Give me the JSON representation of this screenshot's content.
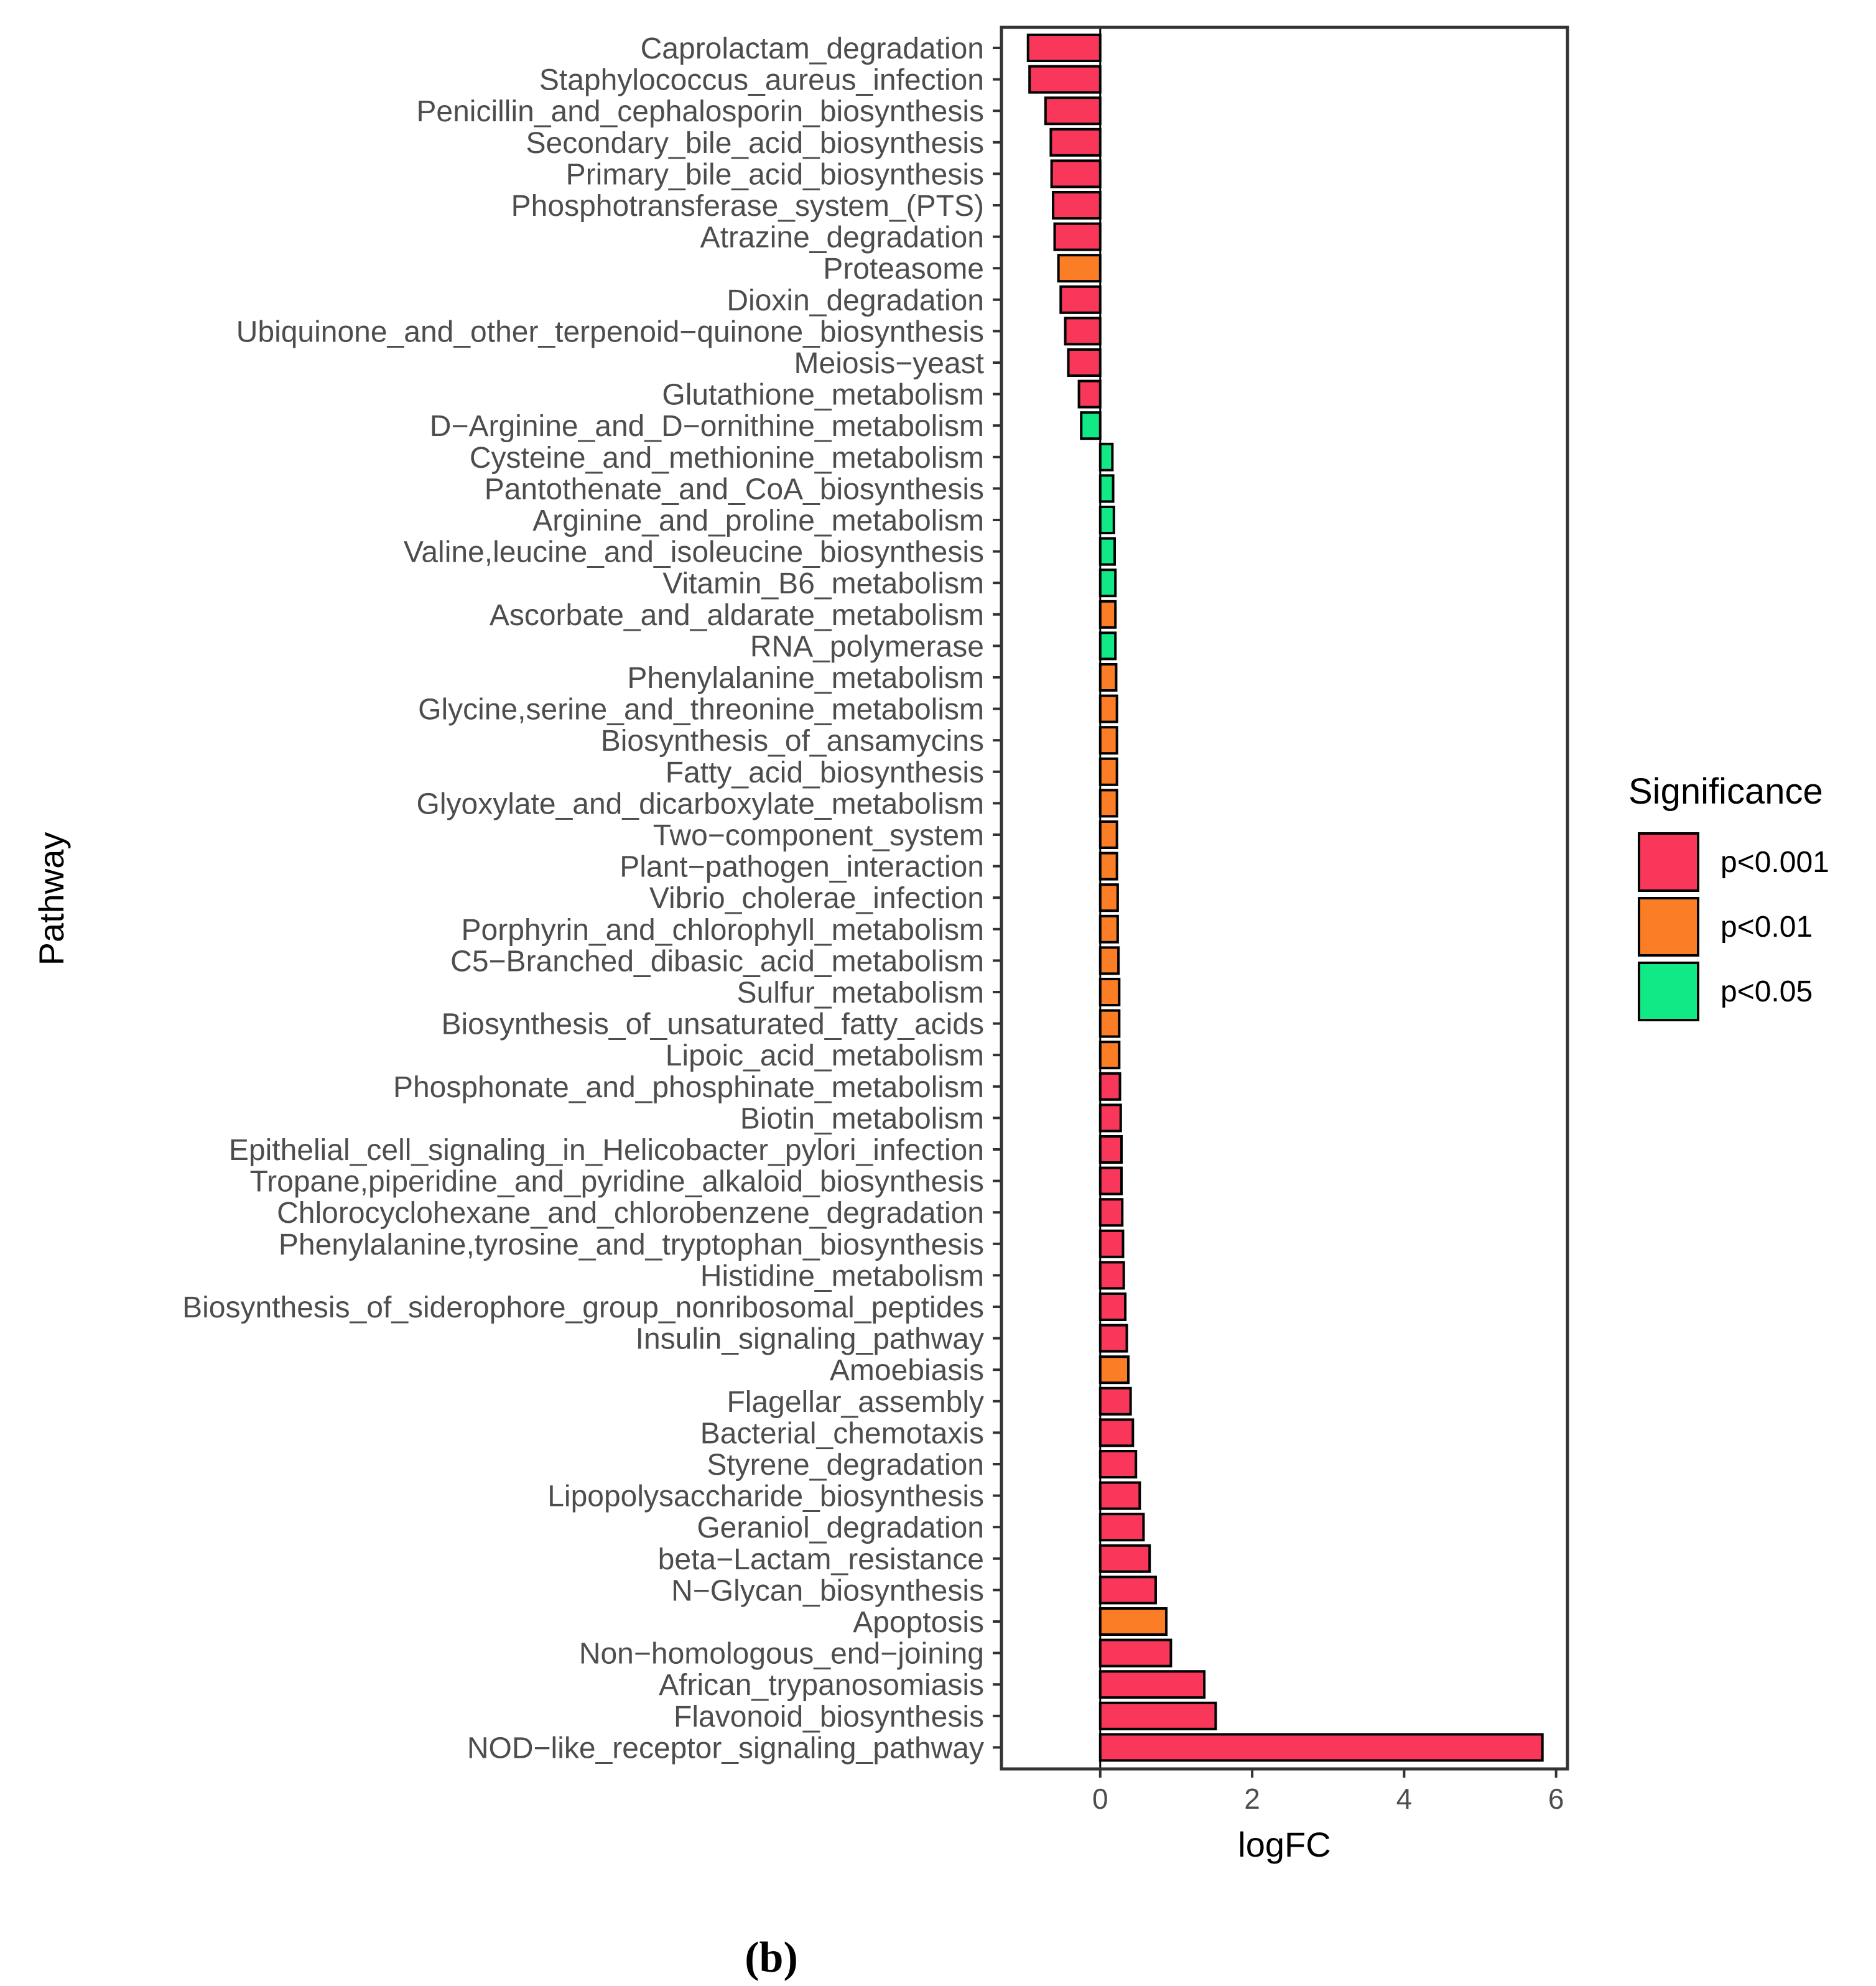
{
  "chart_data": {
    "type": "bar",
    "orientation": "horizontal",
    "xlabel": "logFC",
    "ylabel": "Pathway",
    "xlim": [
      -1.3,
      6.15
    ],
    "xticks": [
      0,
      2,
      4,
      6
    ],
    "grid": false,
    "legend": {
      "title": "Significance",
      "placement": "right",
      "entries": [
        {
          "label": "p<0.001",
          "color": "#f8375a"
        },
        {
          "label": "p<0.01",
          "color": "#fb7d25"
        },
        {
          "label": "p<0.05",
          "color": "#11e886"
        }
      ]
    },
    "categories": [
      "Caprolactam_degradation",
      "Staphylococcus_aureus_infection",
      "Penicillin_and_cephalosporin_biosynthesis",
      "Secondary_bile_acid_biosynthesis",
      "Primary_bile_acid_biosynthesis",
      "Phosphotransferase_system_(PTS)",
      "Atrazine_degradation",
      "Proteasome",
      "Dioxin_degradation",
      "Ubiquinone_and_other_terpenoid−quinone_biosynthesis",
      "Meiosis−yeast",
      "Glutathione_metabolism",
      "D−Arginine_and_D−ornithine_metabolism",
      "Cysteine_and_methionine_metabolism",
      "Pantothenate_and_CoA_biosynthesis",
      "Arginine_and_proline_metabolism",
      "Valine,leucine_and_isoleucine_biosynthesis",
      "Vitamin_B6_metabolism",
      "Ascorbate_and_aldarate_metabolism",
      "RNA_polymerase",
      "Phenylalanine_metabolism",
      "Glycine,serine_and_threonine_metabolism",
      "Biosynthesis_of_ansamycins",
      "Fatty_acid_biosynthesis",
      "Glyoxylate_and_dicarboxylate_metabolism",
      "Two−component_system",
      "Plant−pathogen_interaction",
      "Vibrio_cholerae_infection",
      "Porphyrin_and_chlorophyll_metabolism",
      "C5−Branched_dibasic_acid_metabolism",
      "Sulfur_metabolism",
      "Biosynthesis_of_unsaturated_fatty_acids",
      "Lipoic_acid_metabolism",
      "Phosphonate_and_phosphinate_metabolism",
      "Biotin_metabolism",
      "Epithelial_cell_signaling_in_Helicobacter_pylori_infection",
      "Tropane,piperidine_and_pyridine_alkaloid_biosynthesis",
      "Chlorocyclohexane_and_chlorobenzene_degradation",
      "Phenylalanine,tyrosine_and_tryptophan_biosynthesis",
      "Histidine_metabolism",
      "Biosynthesis_of_siderophore_group_nonribosomal_peptides",
      "Insulin_signaling_pathway",
      "Amoebiasis",
      "Flagellar_assembly",
      "Bacterial_chemotaxis",
      "Styrene_degradation",
      "Lipopolysaccharide_biosynthesis",
      "Geraniol_degradation",
      "beta−Lactam_resistance",
      "N−Glycan_biosynthesis",
      "Apoptosis",
      "Non−homologous_end−joining",
      "African_trypanosomiasis",
      "Flavonoid_biosynthesis",
      "NOD−like_receptor_signaling_pathway"
    ],
    "values": [
      -0.95,
      -0.93,
      -0.72,
      -0.65,
      -0.64,
      -0.62,
      -0.6,
      -0.55,
      -0.52,
      -0.46,
      -0.42,
      -0.28,
      -0.25,
      0.16,
      0.17,
      0.18,
      0.19,
      0.2,
      0.2,
      0.2,
      0.21,
      0.22,
      0.22,
      0.22,
      0.22,
      0.22,
      0.22,
      0.23,
      0.23,
      0.24,
      0.25,
      0.25,
      0.25,
      0.26,
      0.27,
      0.28,
      0.28,
      0.29,
      0.3,
      0.31,
      0.33,
      0.35,
      0.37,
      0.4,
      0.43,
      0.47,
      0.52,
      0.57,
      0.65,
      0.73,
      0.87,
      0.93,
      1.37,
      1.52,
      5.82
    ],
    "significance": [
      "p<0.001",
      "p<0.001",
      "p<0.001",
      "p<0.001",
      "p<0.001",
      "p<0.001",
      "p<0.001",
      "p<0.01",
      "p<0.001",
      "p<0.001",
      "p<0.001",
      "p<0.001",
      "p<0.05",
      "p<0.05",
      "p<0.05",
      "p<0.05",
      "p<0.05",
      "p<0.05",
      "p<0.01",
      "p<0.05",
      "p<0.01",
      "p<0.01",
      "p<0.01",
      "p<0.01",
      "p<0.01",
      "p<0.01",
      "p<0.01",
      "p<0.01",
      "p<0.01",
      "p<0.01",
      "p<0.01",
      "p<0.01",
      "p<0.01",
      "p<0.001",
      "p<0.001",
      "p<0.001",
      "p<0.001",
      "p<0.001",
      "p<0.001",
      "p<0.001",
      "p<0.001",
      "p<0.001",
      "p<0.01",
      "p<0.001",
      "p<0.001",
      "p<0.001",
      "p<0.001",
      "p<0.001",
      "p<0.001",
      "p<0.001",
      "p<0.01",
      "p<0.001",
      "p<0.001",
      "p<0.001",
      "p<0.001"
    ]
  },
  "caption": "(b)"
}
